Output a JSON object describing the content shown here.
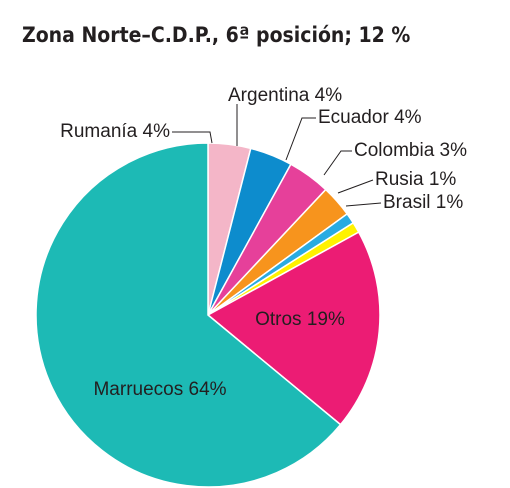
{
  "chart_data": {
    "type": "pie",
    "title": "Zona Norte–C.D.P., 6ª posición; 12 %",
    "categories": [
      "Rumanía",
      "Argentina",
      "Ecuador",
      "Colombia",
      "Rusia",
      "Brasil",
      "Otros",
      "Marruecos"
    ],
    "values": [
      4,
      4,
      4,
      3,
      1,
      1,
      19,
      64
    ],
    "value_labels": [
      "4%",
      "4%",
      "4%",
      "3%",
      "1%",
      "1%",
      "19%",
      "64%"
    ],
    "colors": [
      "#f4b6c8",
      "#0d8ccd",
      "#e6409a",
      "#f7941d",
      "#29abe2",
      "#fff200",
      "#ec1c74",
      "#1dbab5"
    ]
  }
}
